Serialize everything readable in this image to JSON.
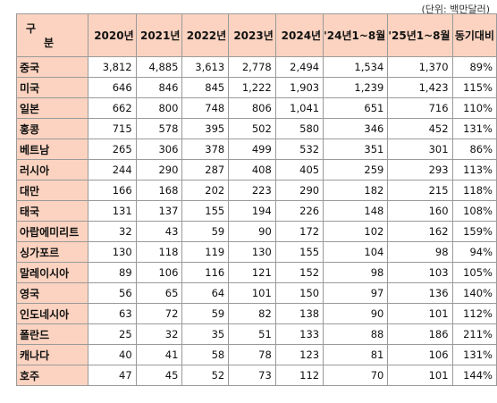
{
  "unit_label": "(단위: 백만달러)",
  "header": {
    "corner_line1": "구",
    "corner_line2": "분",
    "columns": [
      "2020년",
      "2021년",
      "2022년",
      "2023년",
      "2024년",
      "'24년1~8월",
      "'25년1~8월",
      "동기대비"
    ]
  },
  "rows": [
    {
      "country": "중국",
      "values": [
        "3,812",
        "4,885",
        "3,613",
        "2,778",
        "2,494",
        "1,534",
        "1,370",
        "89%"
      ]
    },
    {
      "country": "미국",
      "values": [
        "646",
        "846",
        "845",
        "1,222",
        "1,903",
        "1,239",
        "1,423",
        "115%"
      ]
    },
    {
      "country": "일본",
      "values": [
        "662",
        "800",
        "748",
        "806",
        "1,041",
        "651",
        "716",
        "110%"
      ]
    },
    {
      "country": "홍콩",
      "values": [
        "715",
        "578",
        "395",
        "502",
        "580",
        "346",
        "452",
        "131%"
      ]
    },
    {
      "country": "베트남",
      "values": [
        "265",
        "306",
        "378",
        "499",
        "532",
        "351",
        "301",
        "86%"
      ]
    },
    {
      "country": "러시아",
      "values": [
        "244",
        "290",
        "287",
        "408",
        "405",
        "259",
        "293",
        "113%"
      ]
    },
    {
      "country": "대만",
      "values": [
        "166",
        "168",
        "202",
        "223",
        "290",
        "182",
        "215",
        "118%"
      ]
    },
    {
      "country": "태국",
      "values": [
        "131",
        "137",
        "155",
        "194",
        "226",
        "148",
        "160",
        "108%"
      ]
    },
    {
      "country": "아랍에미리트",
      "values": [
        "32",
        "43",
        "59",
        "90",
        "172",
        "102",
        "162",
        "159%"
      ]
    },
    {
      "country": "싱가포르",
      "values": [
        "130",
        "118",
        "119",
        "130",
        "155",
        "104",
        "98",
        "94%"
      ]
    },
    {
      "country": "말레이시아",
      "values": [
        "89",
        "106",
        "116",
        "121",
        "152",
        "98",
        "103",
        "105%"
      ]
    },
    {
      "country": "영국",
      "values": [
        "56",
        "65",
        "64",
        "101",
        "150",
        "97",
        "136",
        "140%"
      ]
    },
    {
      "country": "인도네시아",
      "values": [
        "63",
        "72",
        "59",
        "82",
        "138",
        "90",
        "101",
        "112%"
      ]
    },
    {
      "country": "폴란드",
      "values": [
        "25",
        "32",
        "35",
        "51",
        "133",
        "88",
        "186",
        "211%"
      ]
    },
    {
      "country": "캐나다",
      "values": [
        "40",
        "41",
        "58",
        "78",
        "123",
        "81",
        "106",
        "131%"
      ]
    },
    {
      "country": "호주",
      "values": [
        "47",
        "45",
        "52",
        "73",
        "112",
        "70",
        "101",
        "144%"
      ]
    }
  ]
}
